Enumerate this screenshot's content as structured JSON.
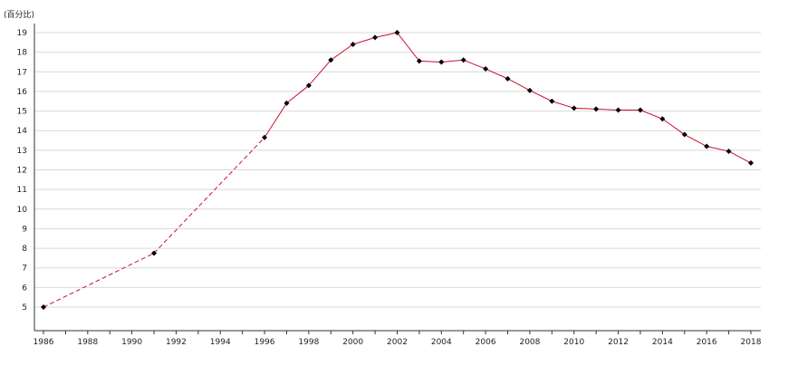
{
  "chart_data": {
    "type": "line",
    "unit_label": "(百分比)",
    "xlim": [
      1986,
      2018
    ],
    "ylim": [
      4,
      19.5
    ],
    "y_ticks": [
      5,
      6,
      7,
      8,
      9,
      10,
      11,
      12,
      13,
      14,
      15,
      16,
      17,
      18,
      19
    ],
    "x_ticks": [
      1986,
      1988,
      1990,
      1992,
      1994,
      1996,
      1998,
      2000,
      2002,
      2004,
      2006,
      2008,
      2010,
      2012,
      2014,
      2016,
      2018
    ],
    "grid": true,
    "legend": "none",
    "series": [
      {
        "color": "#c8102e",
        "marker_color": "#000000",
        "x": [
          1986,
          1991,
          1996,
          1997,
          1998,
          1999,
          2000,
          2001,
          2002,
          2003,
          2004,
          2005,
          2006,
          2007,
          2008,
          2009,
          2010,
          2011,
          2012,
          2013,
          2014,
          2015,
          2016,
          2017,
          2018
        ],
        "values": [
          5.0,
          7.75,
          13.65,
          15.4,
          16.3,
          17.6,
          18.4,
          18.75,
          19.0,
          17.55,
          17.5,
          17.6,
          17.15,
          16.65,
          16.05,
          15.5,
          15.15,
          15.1,
          15.05,
          15.05,
          14.6,
          13.8,
          13.2,
          12.95,
          12.35
        ],
        "dashed_until": 1996
      }
    ]
  }
}
